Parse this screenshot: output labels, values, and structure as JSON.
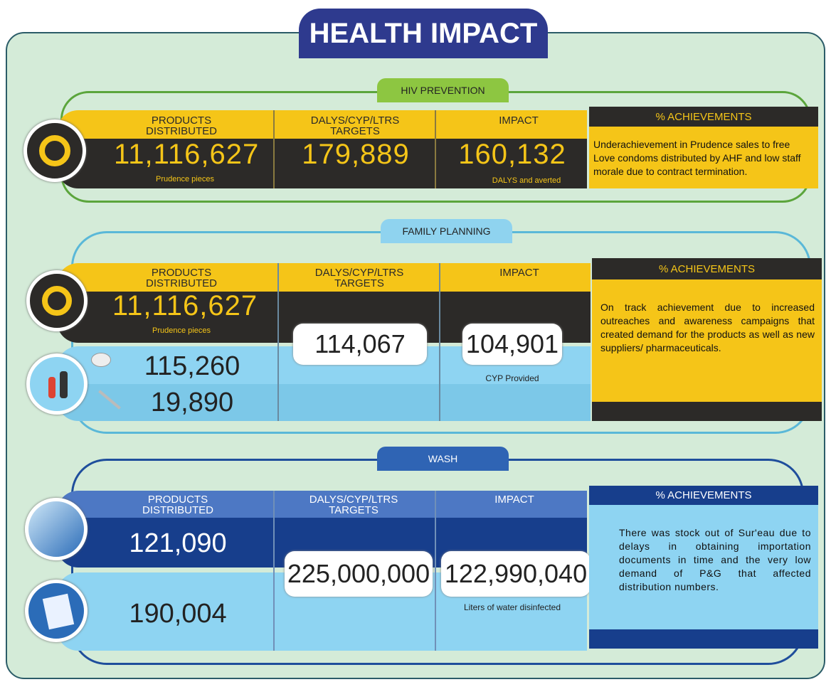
{
  "title": "HEALTH IMPACT",
  "sections": [
    {
      "label": "HIV PREVENTION",
      "columns": [
        "PRODUCTS DISTRIBUTED",
        "DALYS/CYP/LTRS TARGETS",
        "IMPACT",
        "% ACHIEVEMENTS"
      ],
      "products": [
        {
          "count": "11,116,627",
          "note": "Prudence pieces"
        }
      ],
      "target": "179,889",
      "impact": "160,132",
      "impact_note": "DALYS and averted",
      "achievement": "Underachievement in Prudence sales to free Love condoms distributed by AHF and low staff morale  due to contract termination."
    },
    {
      "label": "FAMILY PLANNING",
      "columns": [
        "PRODUCTS DISTRIBUTED",
        "DALYS/CYP/LTRS TARGETS",
        "IMPACT",
        "% ACHIEVEMENTS"
      ],
      "products": [
        {
          "count": "11,116,627",
          "note": "Prudence pieces"
        },
        {
          "count": "115,260"
        },
        {
          "count": "19,890"
        }
      ],
      "target": "114,067",
      "impact": "104,901",
      "impact_note": "CYP Provided",
      "achievement": "On track achievement due to increased outreaches and awareness campaigns that created demand for the products as well as new suppliers/ pharmaceuticals."
    },
    {
      "label": "WASH",
      "columns": [
        "PRODUCTS DISTRIBUTED",
        "DALYS/CYP/LTRS TARGETS",
        "IMPACT",
        "% ACHIEVEMENTS"
      ],
      "products": [
        {
          "count": "121,090"
        },
        {
          "count": "190,004"
        }
      ],
      "target": "225,000,000",
      "impact": "122,990,040",
      "impact_note": "Liters of water disinfected",
      "achievement": "There was stock out of Sur'eau due to delays in obtaining importation documents in time and the very low demand of P&G that affected distribution numbers."
    }
  ]
}
